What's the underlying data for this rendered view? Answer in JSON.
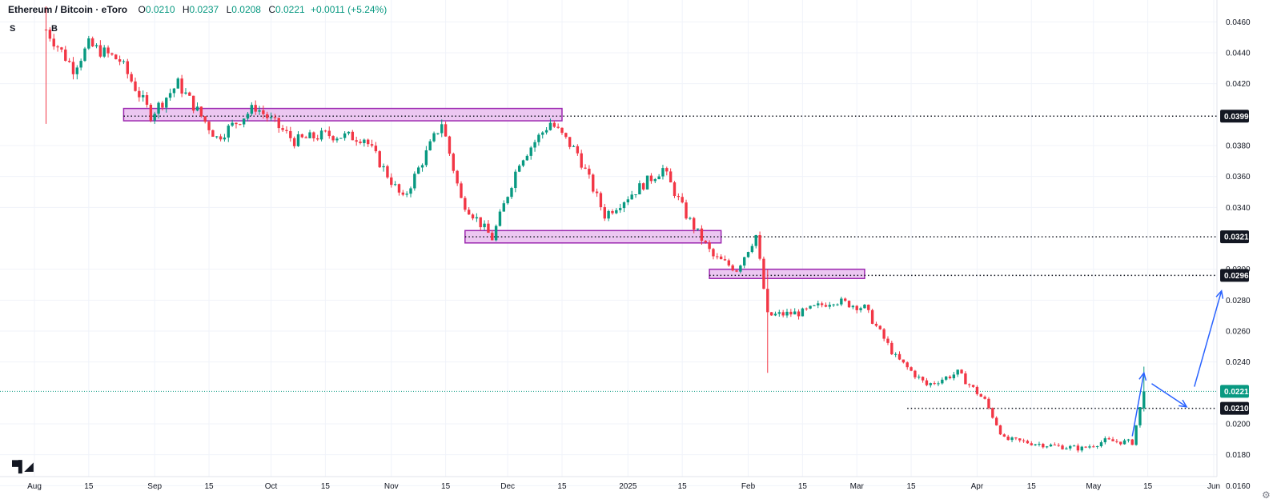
{
  "header": {
    "title": "Ethereum / Bitcoin · eToro",
    "open_label": "O",
    "open": "0.0210",
    "high_label": "H",
    "high": "0.0237",
    "low_label": "L",
    "low": "0.0208",
    "close_label": "C",
    "close": "0.0221",
    "change": "+0.0011 (+5.24%)"
  },
  "markers": {
    "sell": "S",
    "buy": "B"
  },
  "logo_icon": "tradingview-logo-icon",
  "settings_icon": "gear-icon",
  "chart_data": {
    "type": "candlestick",
    "y_scale": {
      "min": 0.0155,
      "max": 0.047
    },
    "y_ticks": [
      "0.0460",
      "0.0440",
      "0.0420",
      "0.0380",
      "0.0360",
      "0.0340",
      "0.0300",
      "0.0280",
      "0.0260",
      "0.0240",
      "0.0200",
      "0.0180",
      "0.0160"
    ],
    "x_ticks": [
      {
        "label": "Aug",
        "day": 0
      },
      {
        "label": "15",
        "day": 14
      },
      {
        "label": "Sep",
        "day": 31
      },
      {
        "label": "15",
        "day": 45
      },
      {
        "label": "Oct",
        "day": 61
      },
      {
        "label": "15",
        "day": 75
      },
      {
        "label": "Nov",
        "day": 92
      },
      {
        "label": "15",
        "day": 106
      },
      {
        "label": "Dec",
        "day": 122
      },
      {
        "label": "15",
        "day": 136
      },
      {
        "label": "2025",
        "day": 153
      },
      {
        "label": "15",
        "day": 167
      },
      {
        "label": "Feb",
        "day": 184
      },
      {
        "label": "15",
        "day": 198
      },
      {
        "label": "Mar",
        "day": 212
      },
      {
        "label": "15",
        "day": 226
      },
      {
        "label": "Apr",
        "day": 243
      },
      {
        "label": "15",
        "day": 257
      },
      {
        "label": "May",
        "day": 273
      },
      {
        "label": "15",
        "day": 287
      },
      {
        "label": "Jun",
        "day": 304
      }
    ],
    "x_range_days": [
      0,
      304
    ],
    "anchors": [
      {
        "day": 3,
        "price": 0.0455
      },
      {
        "day": 10,
        "price": 0.043
      },
      {
        "day": 14,
        "price": 0.0445
      },
      {
        "day": 22,
        "price": 0.0435
      },
      {
        "day": 30,
        "price": 0.04
      },
      {
        "day": 37,
        "price": 0.042
      },
      {
        "day": 47,
        "price": 0.0385
      },
      {
        "day": 57,
        "price": 0.0405
      },
      {
        "day": 67,
        "price": 0.0383
      },
      {
        "day": 75,
        "price": 0.0387
      },
      {
        "day": 85,
        "price": 0.0385
      },
      {
        "day": 95,
        "price": 0.0345
      },
      {
        "day": 105,
        "price": 0.0395
      },
      {
        "day": 110,
        "price": 0.0345
      },
      {
        "day": 118,
        "price": 0.032
      },
      {
        "day": 125,
        "price": 0.037
      },
      {
        "day": 133,
        "price": 0.0395
      },
      {
        "day": 140,
        "price": 0.0375
      },
      {
        "day": 147,
        "price": 0.0335
      },
      {
        "day": 157,
        "price": 0.0355
      },
      {
        "day": 162,
        "price": 0.0365
      },
      {
        "day": 168,
        "price": 0.0335
      },
      {
        "day": 175,
        "price": 0.0308
      },
      {
        "day": 181,
        "price": 0.03
      },
      {
        "day": 186,
        "price": 0.0322
      },
      {
        "day": 189,
        "price": 0.027
      },
      {
        "day": 198,
        "price": 0.0272
      },
      {
        "day": 206,
        "price": 0.028
      },
      {
        "day": 214,
        "price": 0.0275
      },
      {
        "day": 222,
        "price": 0.0243
      },
      {
        "day": 230,
        "price": 0.0225
      },
      {
        "day": 238,
        "price": 0.0233
      },
      {
        "day": 245,
        "price": 0.0215
      },
      {
        "day": 250,
        "price": 0.019
      },
      {
        "day": 262,
        "price": 0.0186
      },
      {
        "day": 270,
        "price": 0.0184
      },
      {
        "day": 276,
        "price": 0.0189
      },
      {
        "day": 283,
        "price": 0.0188
      },
      {
        "day": 285,
        "price": 0.021
      }
    ],
    "last_candle": {
      "day": 286,
      "open": 0.021,
      "high": 0.0237,
      "low": 0.0208,
      "close": 0.0221
    },
    "spikes": [
      {
        "day": 3,
        "low": 0.0394,
        "high": 0.047
      },
      {
        "day": 189,
        "low": 0.0233,
        "high": 0.03
      }
    ],
    "levels": [
      {
        "price": "0.0399",
        "from_day": 23
      },
      {
        "price": "0.0321",
        "from_day": 111
      },
      {
        "price": "0.0296",
        "from_day": 174
      },
      {
        "price": "0.0210",
        "from_day": 225
      }
    ],
    "current_price": "0.0221",
    "zones": [
      {
        "from_day": 23,
        "to_day": 136,
        "low": 0.0396,
        "high": 0.0404
      },
      {
        "from_day": 111,
        "to_day": 177,
        "low": 0.0317,
        "high": 0.0325
      },
      {
        "from_day": 174,
        "to_day": 214,
        "low": 0.0294,
        "high": 0.03
      }
    ],
    "arrows": [
      {
        "from": {
          "day": 283,
          "price": 0.0192
        },
        "to": {
          "day": 286,
          "price": 0.0233
        }
      },
      {
        "from": {
          "day": 288,
          "price": 0.0226
        },
        "to": {
          "day": 297,
          "price": 0.0211
        }
      },
      {
        "from": {
          "day": 299,
          "price": 0.0224
        },
        "to": {
          "day": 306,
          "price": 0.0286
        }
      }
    ],
    "colors": {
      "up": "#089981",
      "down": "#f23645",
      "zone_fill": "#e9bdee",
      "zone_stroke": "#9c27b0",
      "arrow": "#2962ff",
      "grid": "#f0f3fa",
      "current_tag": "#089981",
      "level_tag": "#131722"
    }
  }
}
